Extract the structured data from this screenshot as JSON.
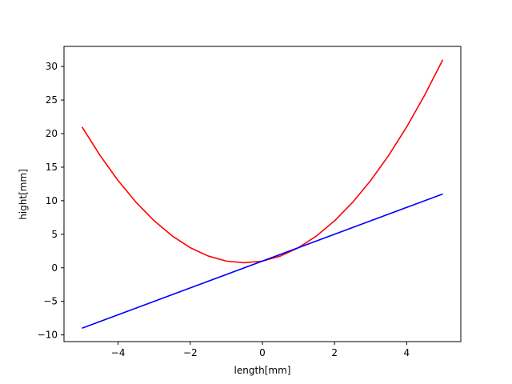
{
  "chart_data": {
    "type": "line",
    "title": "",
    "xlabel": "length[mm]",
    "ylabel": "hight[mm]",
    "xlim": [
      -5.5,
      5.5
    ],
    "ylim": [
      -11,
      33
    ],
    "xticks": [
      -4,
      -2,
      0,
      2,
      4
    ],
    "yticks": [
      -10,
      -5,
      0,
      5,
      10,
      15,
      20,
      25,
      30
    ],
    "xtick_labels": [
      "−4",
      "−2",
      "0",
      "2",
      "4"
    ],
    "ytick_labels": [
      "−10",
      "−5",
      "0",
      "5",
      "10",
      "15",
      "20",
      "25",
      "30"
    ],
    "grid": false,
    "series": [
      {
        "color": "#ff0000",
        "x": [
          -5,
          -4.5,
          -4,
          -3.5,
          -3,
          -2.5,
          -2,
          -1.5,
          -1,
          -0.5,
          0,
          0.5,
          1,
          1.5,
          2,
          2.5,
          3,
          3.5,
          4,
          4.5,
          5
        ],
        "y": [
          21,
          16.75,
          13,
          9.75,
          7,
          4.75,
          3,
          1.75,
          1,
          0.75,
          1,
          1.75,
          3,
          4.75,
          7,
          9.75,
          13,
          16.75,
          21,
          25.75,
          31
        ]
      },
      {
        "color": "#0000ff",
        "x": [
          -5,
          5
        ],
        "y": [
          -9,
          11
        ]
      }
    ]
  }
}
